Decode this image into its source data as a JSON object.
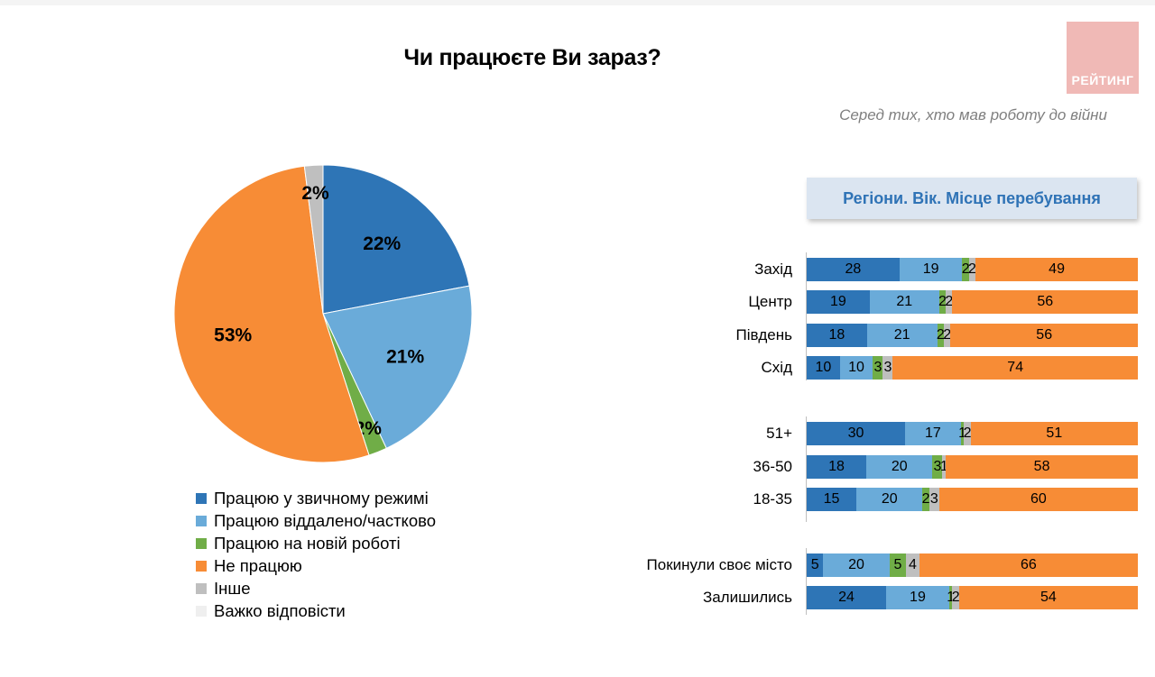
{
  "title": "Чи працюєте Ви зараз?",
  "logo_text": "РЕЙТИНГ",
  "subtitle": "Серед тих, хто мав роботу до війни",
  "section_label": "Регіони. Вік. Місце перебування",
  "colors": {
    "usual": "#2e75b6",
    "remote": "#6aabd9",
    "new": "#70ad47",
    "not_working": "#f78c36",
    "other": "#bfbfbf",
    "hard": "#efefef"
  },
  "chart_data": [
    {
      "type": "pie",
      "categories": [
        "Працюю у звичному режимі",
        "Працюю віддалено/частково",
        "Працюю на новій роботі",
        "Не працюю",
        "Інше",
        "Важко відповісти"
      ],
      "values": [
        22,
        21,
        2,
        53,
        2,
        0
      ],
      "labels": [
        "22%",
        "21%",
        "2%",
        "53%",
        "2%",
        ""
      ],
      "legend": "bottom"
    },
    {
      "type": "bar",
      "orientation": "horizontal",
      "stacked": true,
      "categories": [
        "Захід",
        "Центр",
        "Південь",
        "Схід",
        "51+",
        "36-50",
        "18-35",
        "Покинули своє місто",
        "Залишились"
      ],
      "series": [
        {
          "name": "Працюю у звичному режимі",
          "values": [
            28,
            19,
            18,
            10,
            30,
            18,
            15,
            5,
            24
          ]
        },
        {
          "name": "Працюю віддалено/частково",
          "values": [
            19,
            21,
            21,
            10,
            17,
            20,
            20,
            20,
            19
          ]
        },
        {
          "name": "Працюю на новій роботі",
          "values": [
            2,
            2,
            2,
            3,
            1,
            3,
            2,
            5,
            1
          ]
        },
        {
          "name": "Інше",
          "values": [
            2,
            2,
            2,
            3,
            2,
            1,
            3,
            4,
            2
          ]
        },
        {
          "name": "Не працюю",
          "values": [
            49,
            56,
            56,
            74,
            51,
            58,
            60,
            66,
            54
          ]
        }
      ]
    }
  ]
}
